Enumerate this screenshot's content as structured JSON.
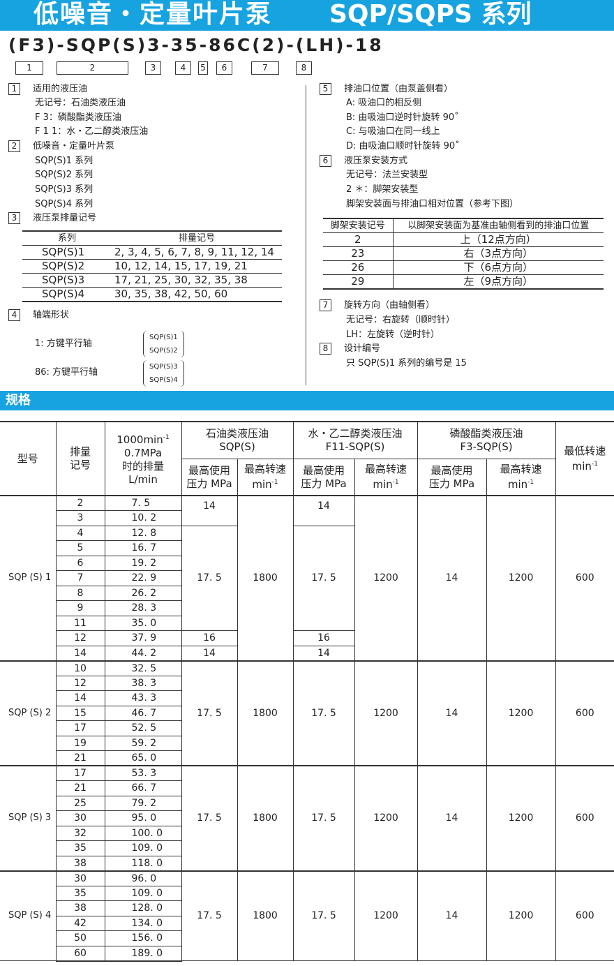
{
  "title": {
    "cn": "低噪音・定量叶片泵",
    "series": "SQP/SQPS 系列"
  },
  "model_code": "(F3)-SQP(S)3-35-86C(2)-(LH)-18",
  "code_boxes": [
    "1",
    "2",
    "3",
    "4",
    "5",
    "6",
    "7",
    "8"
  ],
  "left": {
    "s1": {
      "n": "1",
      "title": "适用的液压油",
      "items": [
        "无记号：石油类液压油",
        "F 3：磷酸酯类液压油",
        "F 1 1：水・乙二醇类液压油"
      ]
    },
    "s2": {
      "n": "2",
      "title": "低噪音・定量叶片泵",
      "items": [
        "SQP(S)1 系列",
        "SQP(S)2 系列",
        "SQP(S)3 系列",
        "SQP(S)4 系列"
      ]
    },
    "s3": {
      "n": "3",
      "title": "液压泵排量记号",
      "headers": [
        "系列",
        "排量记号"
      ],
      "rows": [
        [
          "SQP(S)1",
          "2, 3, 4, 5, 6, 7, 8, 9, 11, 12, 14"
        ],
        [
          "SQP(S)2",
          "10, 12, 14, 15, 17, 19, 21"
        ],
        [
          "SQP(S)3",
          "17, 21, 25, 30, 32, 35, 38"
        ],
        [
          "SQP(S)4",
          "30, 35, 38, 42, 50, 60"
        ]
      ]
    },
    "s4": {
      "n": "4",
      "title": "轴端形状",
      "items": [
        {
          "label": "1:  方键平行轴",
          "series": [
            "SQP(S)1",
            "SQP(S)2"
          ]
        },
        {
          "label": "86:  方键平行轴",
          "series": [
            "SQP(S)3",
            "SQP(S)4"
          ]
        }
      ]
    }
  },
  "right": {
    "s5": {
      "n": "5",
      "title": "排油口位置（由泵盖侧看）",
      "items": [
        "A: 吸油口的相反侧",
        "B: 由吸油口逆时针旋转 90˚",
        "C: 与吸油口在同一线上",
        "D: 由吸油口顺时针旋转 90˚"
      ]
    },
    "s6": {
      "n": "6",
      "title": "液压泵安装方式",
      "items": [
        "无记号：法兰安装型",
        "2 ＊：脚架安装型",
        "脚架安装面与排油口相对位置（参考下图）"
      ],
      "headers": [
        "脚架安装记号",
        "以脚架安装面为基准由轴侧看到的排油口位置"
      ],
      "rows": [
        [
          "2",
          "上（12点方向）"
        ],
        [
          "23",
          "右（3点方向）"
        ],
        [
          "26",
          "下（6点方向）"
        ],
        [
          "29",
          "左（9点方向）"
        ]
      ]
    },
    "s7": {
      "n": "7",
      "title": "旋转方向（由轴侧看）",
      "items": [
        "无记号：右旋转（顺时针）",
        "LH：左旋转（逆时针）"
      ]
    },
    "s8": {
      "n": "8",
      "title": "设计编号",
      "items": [
        "只 SQP(S)1 系列的编号是 15"
      ]
    }
  },
  "spec": {
    "title": "规格",
    "headers": {
      "model": "型号",
      "code": "排量\n记号",
      "disp": [
        "1000min",
        "-1",
        "0.7MPa",
        "时的排量",
        "L/min"
      ],
      "groups": [
        [
          "石油类液压油",
          "SQP(S)"
        ],
        [
          "水・乙二醇类液压油",
          "F11-SQP(S)"
        ],
        [
          "磷酸酯类液压油",
          "F3-SQP(S)"
        ]
      ],
      "pressure": [
        "最高使用",
        "压力 MPa"
      ],
      "speed": [
        "最高转速",
        "min",
        "-1"
      ],
      "min_speed": [
        "最低转速",
        "min",
        "-1"
      ]
    },
    "groups": [
      {
        "model": "SQP (S) 1",
        "rows": [
          [
            "2",
            "7. 5"
          ],
          [
            "3",
            "10. 2"
          ],
          [
            "4",
            "12. 8"
          ],
          [
            "5",
            "16. 7"
          ],
          [
            "6",
            "19. 2"
          ],
          [
            "7",
            "22. 9"
          ],
          [
            "8",
            "26. 2"
          ],
          [
            "9",
            "28. 3"
          ],
          [
            "11",
            "35. 0"
          ],
          [
            "12",
            "37. 9"
          ],
          [
            "14",
            "44. 2"
          ]
        ],
        "pressure_spans": [
          [
            "14",
            2
          ],
          [
            "17. 5",
            7
          ],
          [
            "16",
            1
          ],
          [
            "14",
            1
          ]
        ],
        "speed": "1800",
        "f11_speed": "1200",
        "f3_pressure": "14",
        "f3_speed": "1200",
        "min_speed": "600"
      },
      {
        "model": "SQP (S) 2",
        "rows": [
          [
            "10",
            "32. 5"
          ],
          [
            "12",
            "38. 3"
          ],
          [
            "14",
            "43. 3"
          ],
          [
            "15",
            "46. 7"
          ],
          [
            "17",
            "52. 5"
          ],
          [
            "19",
            "59. 2"
          ],
          [
            "21",
            "65. 0"
          ]
        ],
        "pressure_spans": [
          [
            "17. 5",
            7
          ]
        ],
        "speed": "1800",
        "f11_speed": "1200",
        "f3_pressure": "14",
        "f3_speed": "1200",
        "min_speed": "600"
      },
      {
        "model": "SQP (S) 3",
        "rows": [
          [
            "17",
            "53. 3"
          ],
          [
            "21",
            "66. 7"
          ],
          [
            "25",
            "79. 2"
          ],
          [
            "30",
            "95. 0"
          ],
          [
            "32",
            "100. 0"
          ],
          [
            "35",
            "109. 0"
          ],
          [
            "38",
            "118. 0"
          ]
        ],
        "pressure_spans": [
          [
            "17. 5",
            7
          ]
        ],
        "speed": "1800",
        "f11_speed": "1200",
        "f3_pressure": "14",
        "f3_speed": "1200",
        "min_speed": "600"
      },
      {
        "model": "SQP (S) 4",
        "rows": [
          [
            "30",
            "96. 0"
          ],
          [
            "35",
            "109. 0"
          ],
          [
            "38",
            "128. 0"
          ],
          [
            "42",
            "134. 0"
          ],
          [
            "50",
            "156. 0"
          ],
          [
            "60",
            "189. 0"
          ]
        ],
        "pressure_spans": [
          [
            "17. 5",
            6
          ]
        ],
        "speed": "1800",
        "f11_speed": "1200",
        "f3_pressure": "14",
        "f3_speed": "1200",
        "min_speed": "600"
      }
    ]
  }
}
